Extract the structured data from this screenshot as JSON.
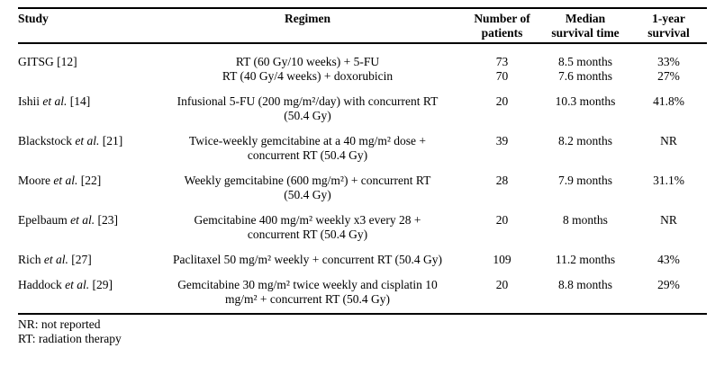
{
  "page": {
    "background": "#ffffff",
    "text_color": "#000000"
  },
  "table": {
    "headers": [
      {
        "line1": "Study",
        "line2": ""
      },
      {
        "line1": "Regimen",
        "line2": ""
      },
      {
        "line1": "Number of",
        "line2": "patients"
      },
      {
        "line1": "Median",
        "line2": "survival time"
      },
      {
        "line1": "1-year",
        "line2": "survival"
      }
    ],
    "rows": [
      {
        "study_pre": "GITSG ",
        "study_italic": "",
        "study_ref": "[12]",
        "lines": [
          {
            "regimen": "RT (60 Gy/10 weeks) + 5-FU",
            "patients": "73",
            "median": "8.5 months",
            "one_year": "33%"
          },
          {
            "regimen": "RT (40 Gy/4 weeks) + doxorubicin",
            "patients": "70",
            "median": "7.6 months",
            "one_year": "27%"
          }
        ]
      },
      {
        "study_pre": "Ishii ",
        "study_italic": "et al. ",
        "study_ref": "[14]",
        "lines": [
          {
            "regimen": "Infusional 5-FU (200 mg/m²/day) with concurrent RT",
            "patients": "20",
            "median": "10.3 months",
            "one_year": "41.8%"
          },
          {
            "regimen": "(50.4 Gy)",
            "patients": "",
            "median": "",
            "one_year": ""
          }
        ]
      },
      {
        "study_pre": "Blackstock ",
        "study_italic": "et al. ",
        "study_ref": "[21]",
        "lines": [
          {
            "regimen": "Twice-weekly gemcitabine at a 40 mg/m² dose +",
            "patients": "39",
            "median": "8.2 months",
            "one_year": "NR"
          },
          {
            "regimen": "concurrent RT (50.4 Gy)",
            "patients": "",
            "median": "",
            "one_year": ""
          }
        ]
      },
      {
        "study_pre": "Moore ",
        "study_italic": "et al. ",
        "study_ref": "[22]",
        "lines": [
          {
            "regimen": "Weekly gemcitabine (600 mg/m²) + concurrent RT",
            "patients": "28",
            "median": "7.9 months",
            "one_year": "31.1%"
          },
          {
            "regimen": "(50.4 Gy)",
            "patients": "",
            "median": "",
            "one_year": ""
          }
        ]
      },
      {
        "study_pre": "Epelbaum ",
        "study_italic": "et al. ",
        "study_ref": "[23]",
        "lines": [
          {
            "regimen": "Gemcitabine 400 mg/m² weekly x3 every 28 +",
            "patients": "20",
            "median": "8 months",
            "one_year": "NR"
          },
          {
            "regimen": "concurrent RT (50.4 Gy)",
            "patients": "",
            "median": "",
            "one_year": ""
          }
        ]
      },
      {
        "study_pre": "Rich ",
        "study_italic": "et al. ",
        "study_ref": "[27]",
        "lines": [
          {
            "regimen": "Paclitaxel 50 mg/m² weekly + concurrent RT (50.4 Gy)",
            "patients": "109",
            "median": "11.2 months",
            "one_year": "43%"
          }
        ]
      },
      {
        "study_pre": "Haddock ",
        "study_italic": "et al. ",
        "study_ref": "[29]",
        "lines": [
          {
            "regimen": "Gemcitabine 30 mg/m² twice weekly and cisplatin 10",
            "patients": "20",
            "median": "8.8 months",
            "one_year": "29%"
          },
          {
            "regimen": "mg/m² + concurrent RT (50.4 Gy)",
            "patients": "",
            "median": "",
            "one_year": ""
          }
        ]
      }
    ]
  },
  "footnotes": [
    "NR: not reported",
    "RT: radiation therapy"
  ]
}
